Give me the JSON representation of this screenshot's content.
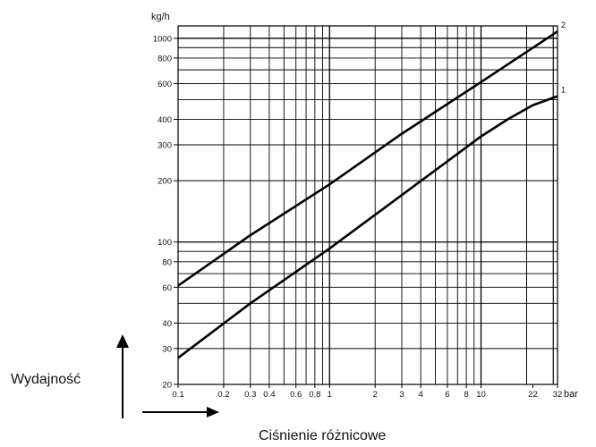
{
  "chart_data": {
    "type": "line",
    "xscale": "log",
    "yscale": "log",
    "xunit": "bar",
    "yunit": "kg/h",
    "xlabel": "Ciśnienie różnicowe",
    "ylabel": "Wydajność",
    "xlim": [
      0.1,
      32
    ],
    "ylim": [
      20,
      1150
    ],
    "x_tick_labels": [
      "0.1",
      "0.2",
      "0.3",
      "0.4",
      "0.6",
      "0.8",
      "1",
      "2",
      "3",
      "4",
      "6",
      "8",
      "10",
      "22",
      "32"
    ],
    "y_tick_labels": [
      "20",
      "30",
      "40",
      "60",
      "80",
      "100",
      "200",
      "300",
      "400",
      "600",
      "800",
      "1000"
    ],
    "grid": true,
    "series": [
      {
        "name": "2",
        "x": [
          0.1,
          0.3,
          1,
          3,
          10,
          32
        ],
        "y": [
          61,
          108,
          192,
          340,
          610,
          1080
        ]
      },
      {
        "name": "1",
        "x": [
          0.1,
          0.3,
          1,
          3,
          10,
          15,
          22,
          32
        ],
        "y": [
          27,
          50,
          93,
          170,
          330,
          400,
          470,
          520
        ]
      }
    ]
  }
}
